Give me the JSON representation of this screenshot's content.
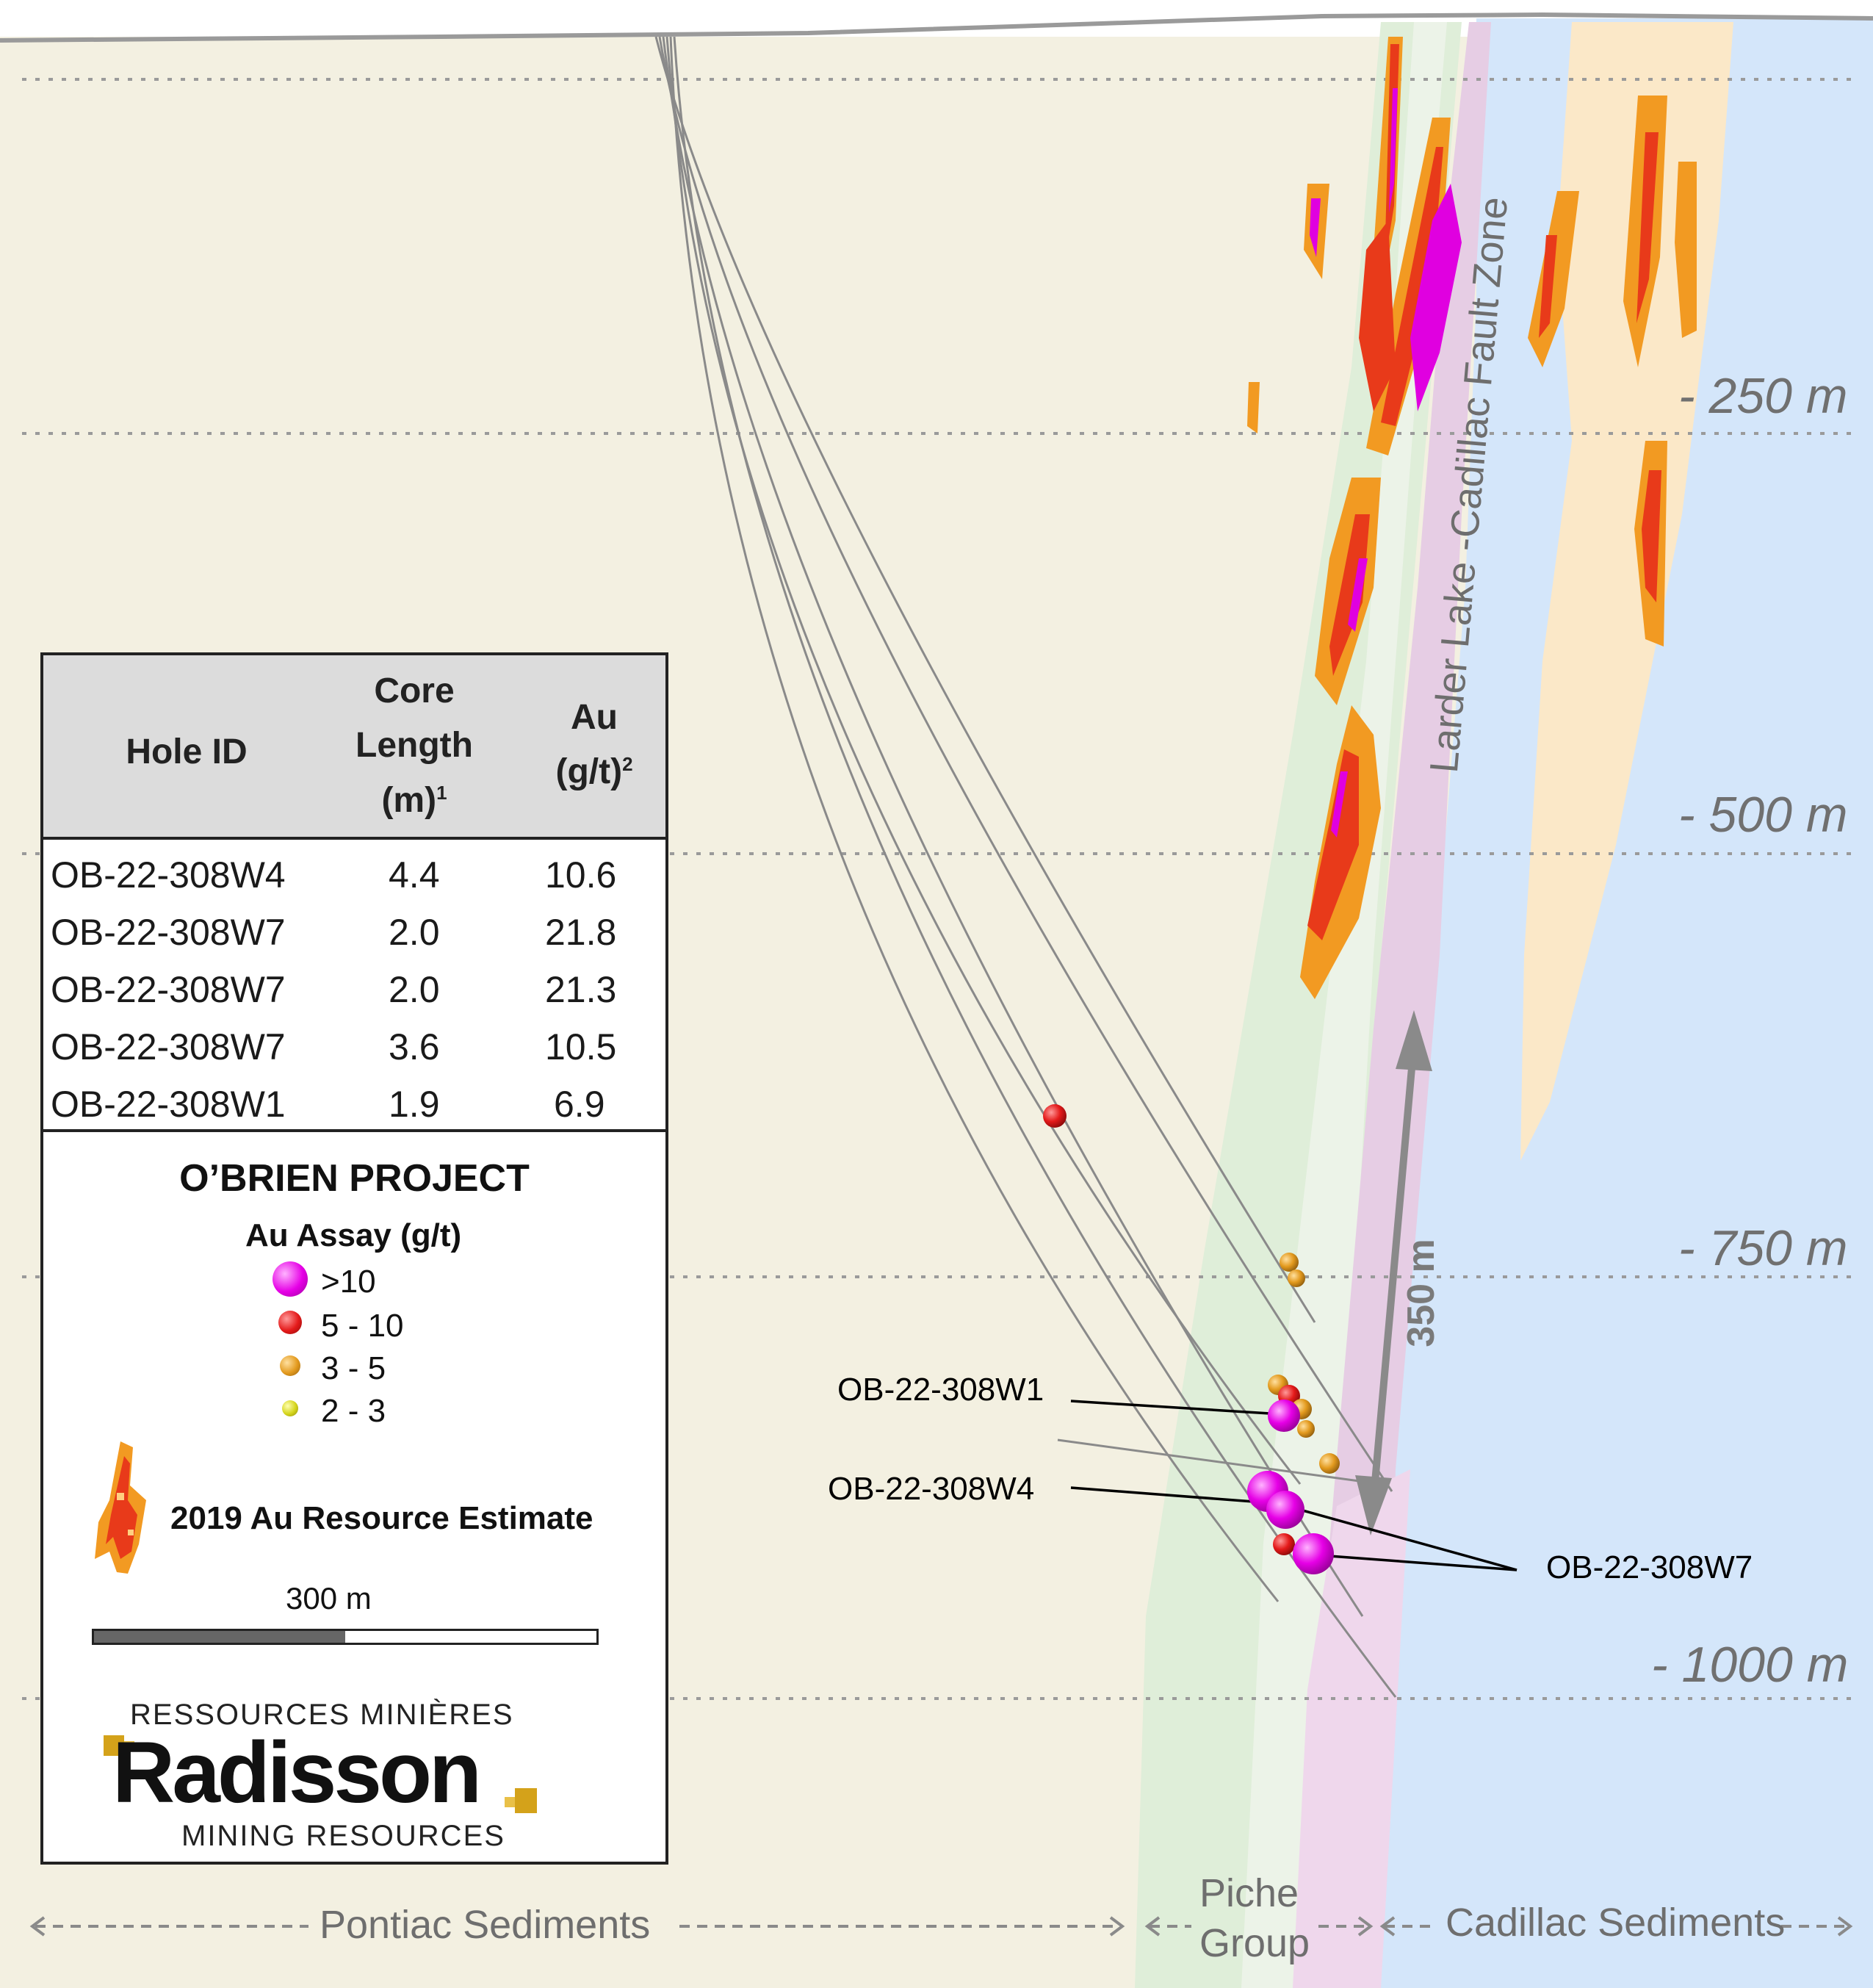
{
  "map": {
    "fault_zone": "Larder Lake -Cadillac Fault Zone",
    "distance_label": "350 m",
    "hole_labels": [
      "OB-22-308W1",
      "OB-22-308W4",
      "OB-22-308W7"
    ]
  },
  "depths": [
    "- 250 m",
    "- 500 m",
    "- 750 m",
    "- 1000 m"
  ],
  "zones": {
    "pontiac": "Pontiac Sediments",
    "piche_line1": "Piche",
    "piche_line2": "Group",
    "cadillac": "Cadillac Sediments"
  },
  "table": {
    "headers": {
      "0": "Hole ID",
      "1a": "Core",
      "1b": "Length",
      "1c": "(m)",
      "1sup": "1",
      "2a": "Au",
      "2b": "(g/t)",
      "2sup": "2"
    },
    "rows": [
      [
        "OB-22-308W4",
        "4.4",
        "10.6"
      ],
      [
        "OB-22-308W7",
        "2.0",
        "21.8"
      ],
      [
        "OB-22-308W7",
        "2.0",
        "21.3"
      ],
      [
        "OB-22-308W7",
        "3.6",
        "10.5"
      ],
      [
        "OB-22-308W1",
        "1.9",
        "6.9"
      ]
    ]
  },
  "legend": {
    "project_title": "O’BRIEN PROJECT",
    "assay_title": "Au Assay (g/t)",
    "assay_classes": [
      ">10",
      "5 - 10",
      "3 - 5",
      "2 - 3"
    ],
    "assay_colors": [
      "#e600e6",
      "#e41a1a",
      "#e39a1e",
      "#d4d41a"
    ],
    "resource_label": "2019 Au Resource Estimate",
    "scale_label": "300 m",
    "logo_line1": "RESSOURCES MINIÈRES",
    "logo_word": "Radisson",
    "logo_line2": "MINING RESOURCES"
  },
  "colors": {
    "pontiac": "#f3f0e1",
    "cadillac": "#d4e6fa",
    "piche": "#dfeed9",
    "ultramafic": "#e6cde4",
    "felsic": "#fbe8c8"
  }
}
